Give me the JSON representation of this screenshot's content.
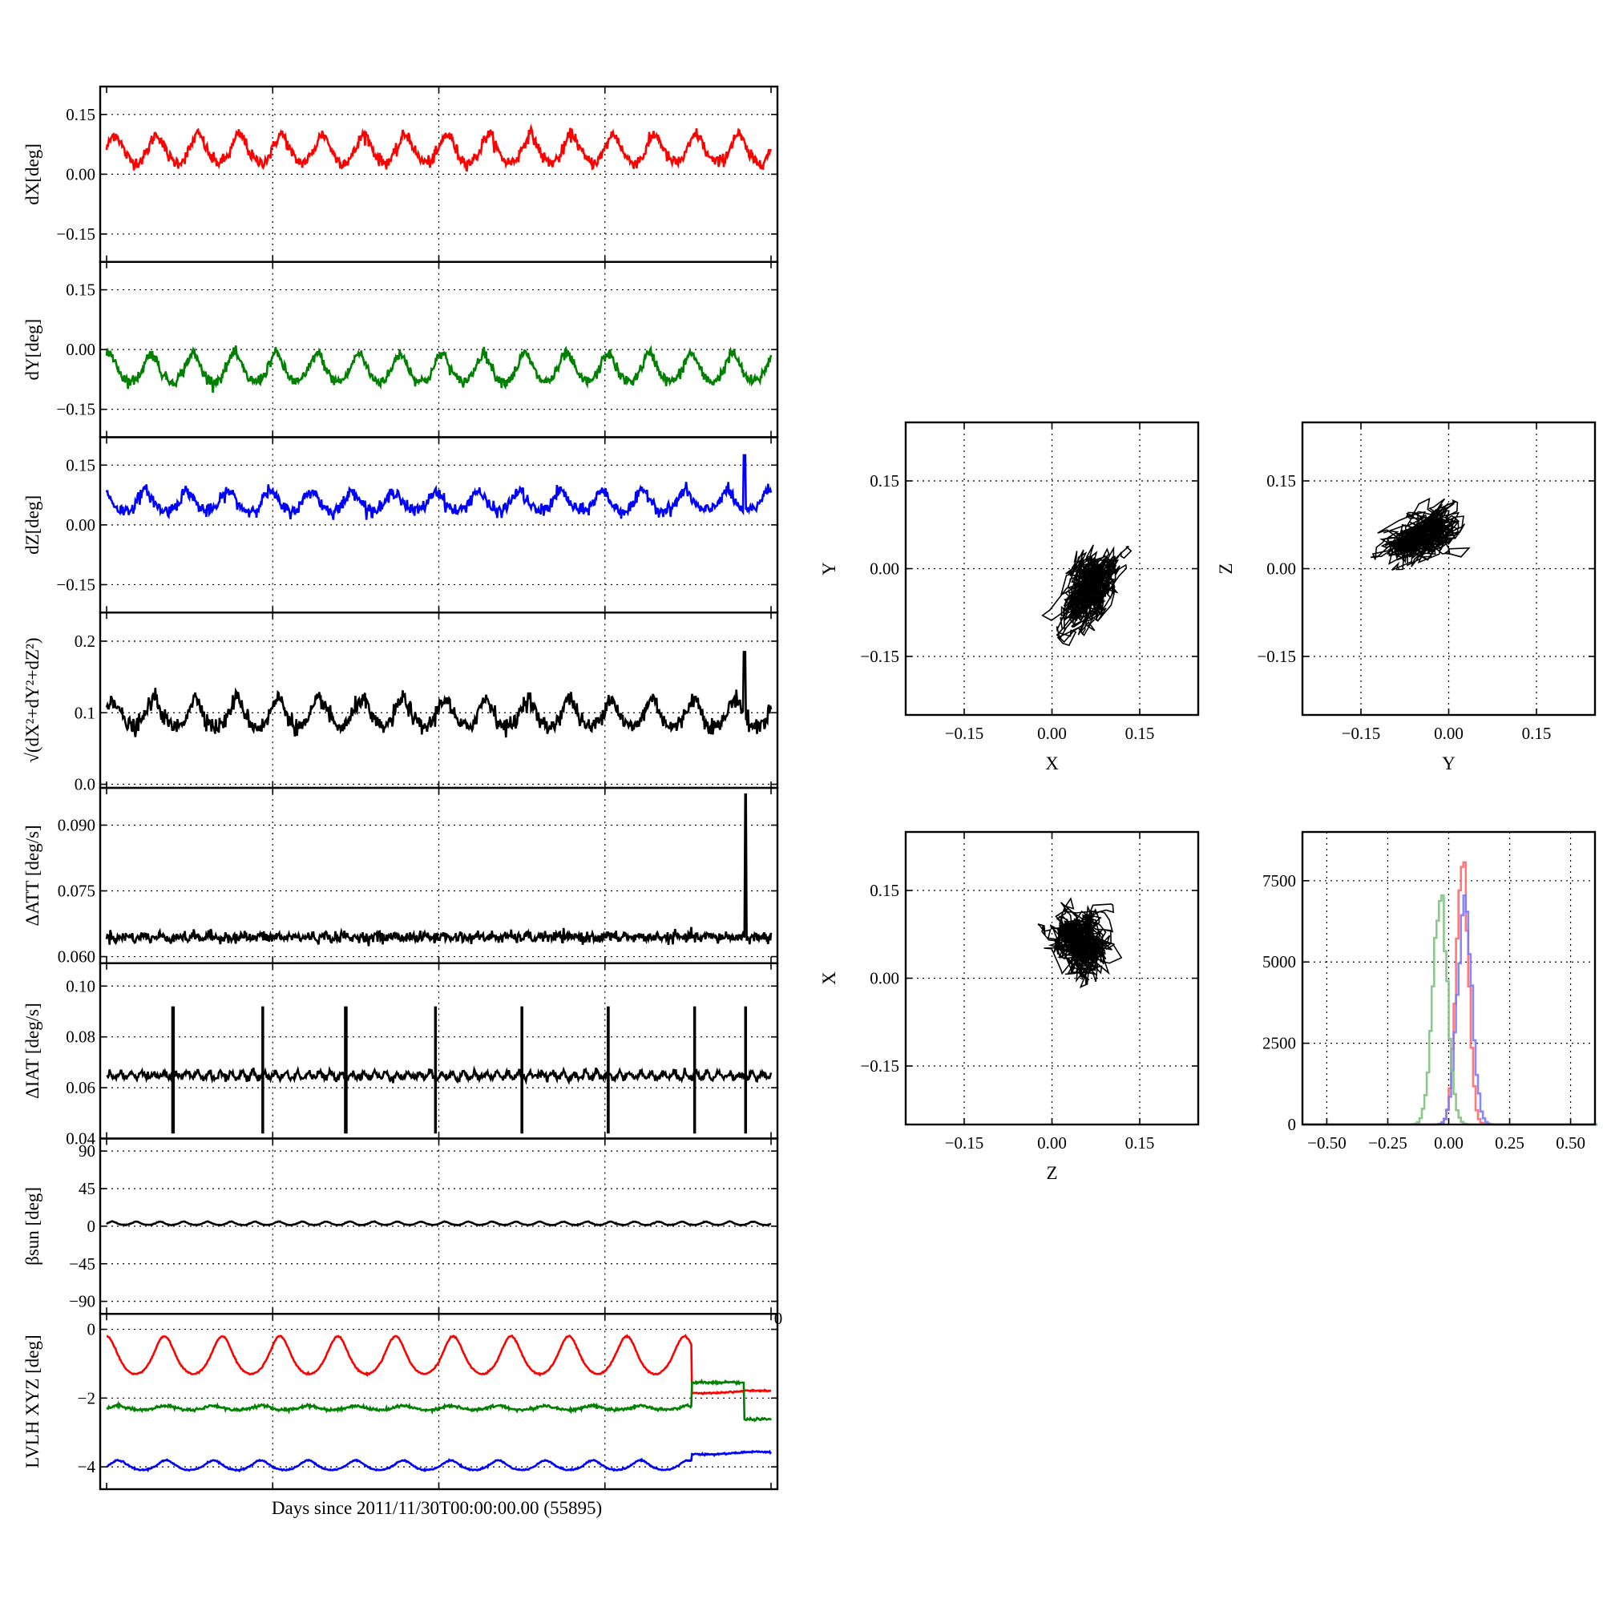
{
  "figure": {
    "shared_xlabel": "Days since 2011/11/30T00:00:00.00 (55895)",
    "stray_tick_label": "0"
  },
  "chart_data": [
    {
      "id": "dx",
      "type": "line",
      "ylabel": "dX[deg]",
      "ylim": [
        -0.22,
        0.22
      ],
      "yticks": [
        0.15,
        0.0,
        -0.15
      ],
      "ytick_labels": [
        "0.15",
        "0.00",
        "−0.15"
      ],
      "grid": true,
      "series": [
        {
          "color": "#ff0000",
          "baseline": 0.065,
          "amplitude": 0.035,
          "cycles": 16,
          "noise": 0.008,
          "phase": 0.3
        }
      ]
    },
    {
      "id": "dy",
      "type": "line",
      "ylabel": "dY[deg]",
      "ylim": [
        -0.22,
        0.22
      ],
      "yticks": [
        0.15,
        0.0,
        -0.15
      ],
      "ytick_labels": [
        "0.15",
        "0.00",
        "−0.15"
      ],
      "grid": true,
      "series": [
        {
          "color": "#008000",
          "baseline": -0.045,
          "amplitude": 0.035,
          "cycles": 16,
          "noise": 0.007,
          "phase": 1.1
        }
      ]
    },
    {
      "id": "dz",
      "type": "line",
      "ylabel": "dZ[deg]",
      "ylim": [
        -0.22,
        0.22
      ],
      "yticks": [
        0.15,
        0.0,
        -0.15
      ],
      "ytick_labels": [
        "0.15",
        "0.00",
        "−0.15"
      ],
      "grid": true,
      "series": [
        {
          "color": "#0000ff",
          "baseline": 0.06,
          "amplitude": 0.025,
          "cycles": 16,
          "noise": 0.008,
          "phase": 2.0,
          "spike_at": 0.96,
          "spike_value": 0.175
        }
      ]
    },
    {
      "id": "norm",
      "type": "line",
      "ylabel": "√(dX²+dY²+dZ²)",
      "ylim": [
        -0.005,
        0.24
      ],
      "yticks": [
        0.2,
        0.1,
        0.0
      ],
      "ytick_labels": [
        "0.2",
        "0.1",
        "0.0"
      ],
      "grid": true,
      "series": [
        {
          "color": "#000000",
          "baseline": 0.1,
          "amplitude": 0.02,
          "cycles": 16,
          "noise": 0.006,
          "phase": 0.7,
          "spike_at": 0.96,
          "spike_value": 0.185
        }
      ]
    },
    {
      "id": "datt",
      "type": "line",
      "ylabel": "ΔATT [deg/s]",
      "ylim": [
        0.0585,
        0.0985
      ],
      "yticks": [
        0.09,
        0.075,
        0.06
      ],
      "ytick_labels": [
        "0.090",
        "0.075",
        "0.060"
      ],
      "grid": true,
      "series": [
        {
          "color": "#000000",
          "baseline": 0.0645,
          "amplitude": 0.0003,
          "cycles": 40,
          "noise": 0.0006,
          "phase": 0.0,
          "spike_at": 0.962,
          "spike_value": 0.097
        }
      ]
    },
    {
      "id": "diat",
      "type": "line",
      "ylabel": "ΔIAT [deg/s]",
      "ylim": [
        0.04,
        0.109
      ],
      "yticks": [
        0.1,
        0.08,
        0.06,
        0.04
      ],
      "ytick_labels": [
        "0.10",
        "0.08",
        "0.06",
        "0.04"
      ],
      "grid": true,
      "series": [
        {
          "color": "#000000",
          "baseline": 0.065,
          "amplitude": 0.0012,
          "cycles": 60,
          "noise": 0.0007,
          "phase": 0.0,
          "bursts": [
            0.1,
            0.235,
            0.36,
            0.495,
            0.625,
            0.755,
            0.885,
            0.962
          ],
          "burst_high": 0.092,
          "burst_low": 0.042
        }
      ]
    },
    {
      "id": "beta",
      "type": "line",
      "ylabel": "βsun [deg]",
      "ylim": [
        -105,
        105
      ],
      "yticks": [
        90,
        45,
        0,
        -45,
        -90
      ],
      "ytick_labels": [
        "90",
        "45",
        "0",
        "−45",
        "−90"
      ],
      "grid": true,
      "series": [
        {
          "color": "#000000",
          "baseline": 3.5,
          "amplitude": 2.0,
          "cycles": 28,
          "noise": 0.2,
          "phase": 0.0
        }
      ]
    },
    {
      "id": "lvlh",
      "type": "line",
      "ylabel": "LVLH XYZ [deg]",
      "ylim": [
        -4.65,
        0.45
      ],
      "yticks": [
        0,
        -2,
        -4
      ],
      "ytick_labels": [
        "0",
        "−2",
        "−4"
      ],
      "grid": true,
      "series": [
        {
          "color": "#ff0000",
          "baseline": -0.75,
          "amplitude": 0.55,
          "cycles": 11.5,
          "noise": 0.01,
          "phase": 1.57,
          "tail_start": 0.88,
          "tail_value": -1.82
        },
        {
          "color": "#008000",
          "baseline": -2.28,
          "amplitude": 0.06,
          "cycles": 14,
          "noise": 0.02,
          "phase": 0.0,
          "step_start": 0.88,
          "step_end": 0.96,
          "step_value": -1.55,
          "after_value": -2.62
        },
        {
          "color": "#0000ff",
          "baseline": -3.95,
          "amplitude": 0.14,
          "cycles": 14,
          "noise": 0.01,
          "phase": 0.0,
          "tail_start": 0.88,
          "tail_value": -3.6
        }
      ]
    },
    {
      "id": "xy",
      "type": "scatter",
      "xlabel": "X",
      "ylabel": "Y",
      "xlim": [
        -0.25,
        0.25
      ],
      "ylim": [
        -0.25,
        0.25
      ],
      "ticks": [
        -0.15,
        0.0,
        0.15
      ],
      "tick_labels": [
        "−0.15",
        "0.00",
        "0.15"
      ],
      "grid": true,
      "cloud": {
        "cx": 0.063,
        "cy": -0.04,
        "sx": 0.022,
        "sy": 0.03,
        "rho": 0.55,
        "n": 900
      }
    },
    {
      "id": "yz",
      "type": "scatter",
      "xlabel": "Y",
      "ylabel": "Z",
      "xlim": [
        -0.25,
        0.25
      ],
      "ylim": [
        -0.25,
        0.25
      ],
      "ticks": [
        -0.15,
        0.0,
        0.15
      ],
      "tick_labels": [
        "−0.15",
        "0.00",
        "0.15"
      ],
      "grid": true,
      "cloud": {
        "cx": -0.045,
        "cy": 0.055,
        "sx": 0.028,
        "sy": 0.022,
        "rho": 0.45,
        "n": 900
      }
    },
    {
      "id": "zx",
      "type": "scatter",
      "xlabel": "Z",
      "ylabel": "X",
      "xlim": [
        -0.25,
        0.25
      ],
      "ylim": [
        -0.25,
        0.25
      ],
      "ticks": [
        -0.15,
        0.0,
        0.15
      ],
      "tick_labels": [
        "−0.15",
        "0.00",
        "0.15"
      ],
      "grid": true,
      "cloud": {
        "cx": 0.048,
        "cy": 0.06,
        "sx": 0.022,
        "sy": 0.028,
        "rho": -0.2,
        "n": 900
      }
    },
    {
      "id": "hist",
      "type": "histogram",
      "xlim": [
        -0.6,
        0.6
      ],
      "ylim": [
        0,
        9000
      ],
      "xticks": [
        -0.5,
        -0.25,
        0.0,
        0.25,
        0.5
      ],
      "xtick_labels": [
        "−0.50",
        "−0.25",
        "0.00",
        "0.25",
        "0.50"
      ],
      "yticks": [
        0,
        2500,
        5000,
        7500
      ],
      "ytick_labels": [
        "0",
        "2500",
        "5000",
        "7500"
      ],
      "grid": true,
      "series": [
        {
          "color": "#ff6a6a",
          "center": 0.05,
          "sigma": 0.025,
          "peak": 8100
        },
        {
          "color": "#7b7bff",
          "center": 0.06,
          "sigma": 0.03,
          "peak": 6600
        },
        {
          "color": "#7fc27f",
          "center": -0.04,
          "sigma": 0.03,
          "peak": 6900
        }
      ]
    }
  ]
}
